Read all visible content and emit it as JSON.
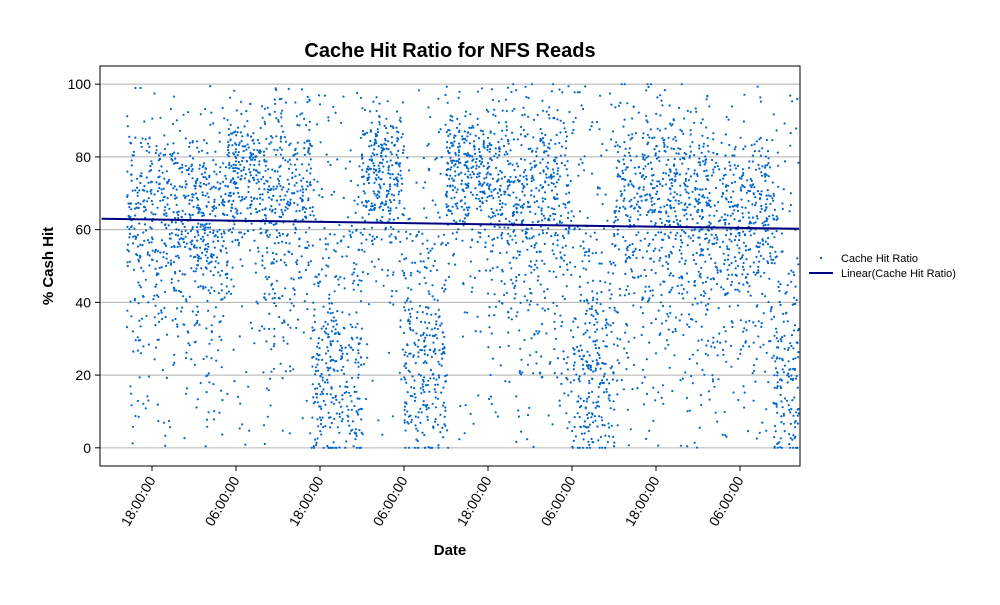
{
  "chart_data": {
    "type": "scatter",
    "title": "Cache Hit Ratio for NFS Reads",
    "xlabel": "Date",
    "ylabel": "% Cash Hit",
    "x_tick_labels": [
      "18:00:00",
      "06:00:00",
      "18:00:00",
      "06:00:00",
      "18:00:00",
      "06:00:00",
      "18:00:00",
      "06:00:00"
    ],
    "y_ticks": [
      0,
      20,
      40,
      60,
      80,
      100
    ],
    "ylim": [
      -5,
      105
    ],
    "grid": "horizontal",
    "legend_position": "right",
    "series": [
      {
        "name": "Cache Hit Ratio",
        "kind": "scatter",
        "color": "#0066cc",
        "segments": [
          {
            "from_tick": -0.3,
            "to_tick": 0.9,
            "regime": "medium"
          },
          {
            "from_tick": 0.9,
            "to_tick": 1.3,
            "regime": "high"
          },
          {
            "from_tick": 1.3,
            "to_tick": 1.9,
            "regime": "spread"
          },
          {
            "from_tick": 1.9,
            "to_tick": 2.5,
            "regime": "low"
          },
          {
            "from_tick": 2.5,
            "to_tick": 3.0,
            "regime": "high"
          },
          {
            "from_tick": 3.0,
            "to_tick": 3.5,
            "regime": "low"
          },
          {
            "from_tick": 3.5,
            "to_tick": 4.0,
            "regime": "high"
          },
          {
            "from_tick": 4.0,
            "to_tick": 5.0,
            "regime": "spread"
          },
          {
            "from_tick": 5.0,
            "to_tick": 5.5,
            "regime": "low"
          },
          {
            "from_tick": 5.5,
            "to_tick": 6.5,
            "regime": "spread"
          },
          {
            "from_tick": 6.5,
            "to_tick": 7.4,
            "regime": "medium"
          },
          {
            "from_tick": 7.4,
            "to_tick": 7.8,
            "regime": "low"
          }
        ]
      },
      {
        "name": "Linear(Cache Hit Ratio)",
        "kind": "line",
        "color": "#000080",
        "x_ticks": [
          -0.6,
          7.8
        ],
        "y": [
          63.0,
          60.2
        ]
      }
    ]
  }
}
